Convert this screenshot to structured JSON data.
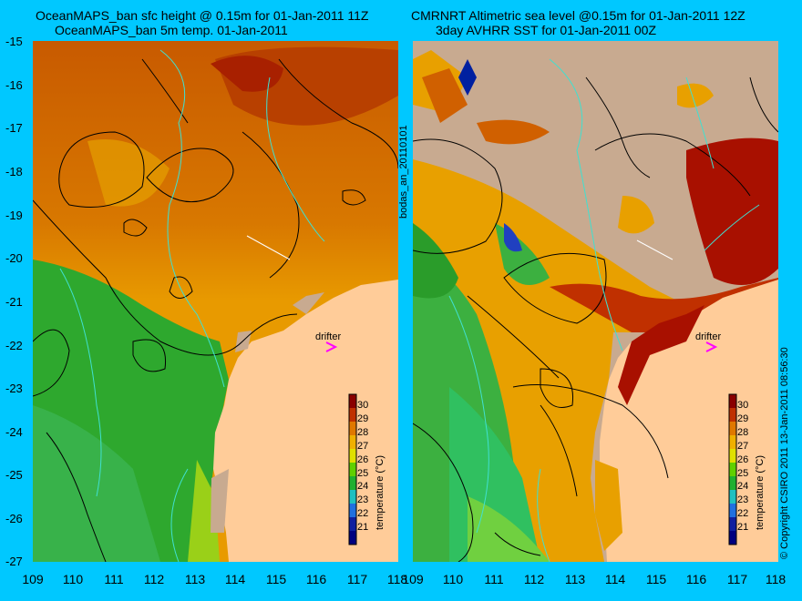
{
  "left_panel": {
    "title_line1": "OceanMAPS_ban sfc height @ 0.15m for 01-Jan-2011 11Z",
    "title_line2": "OceanMAPS_ban 5m temp. 01-Jan-2011",
    "drifter_label": "drifter",
    "colorbar": {
      "label": "temperature (°C)",
      "ticks": [
        "30",
        "29",
        "28",
        "27",
        "26",
        "25",
        "24",
        "23",
        "22",
        "21"
      ]
    }
  },
  "right_panel": {
    "title_line1": "CMRNRT Altimetric sea level  @0.15m  for 01-Jan-2011 12Z",
    "title_line2": "3day AVHRR SST for 01-Jan-2011 00Z",
    "drifter_label": "drifter",
    "colorbar": {
      "label": "temperature (°C)",
      "ticks": [
        "30",
        "29",
        "28",
        "27",
        "26",
        "25",
        "24",
        "23",
        "22",
        "21"
      ]
    }
  },
  "side_label": "bodas_an_20110101",
  "copyright": "© Copyright CSIRO 2011   13-Jan-2011 08:56:30",
  "y_axis_ticks": [
    "-15",
    "-16",
    "-17",
    "-18",
    "-19",
    "-20",
    "-21",
    "-22",
    "-23",
    "-24",
    "-25",
    "-26",
    "-27"
  ],
  "x_axis_ticks_left": [
    "109",
    "110",
    "111",
    "112",
    "113",
    "114",
    "115",
    "116",
    "117",
    "118"
  ],
  "x_axis_ticks_right": [
    "109",
    "110",
    "111",
    "112",
    "113",
    "114",
    "115",
    "116",
    "117",
    "118"
  ],
  "colors": {
    "background": "#00c8ff",
    "land": "#ffcc99",
    "missing": "#c8aa90",
    "drifter": "#ff00ff",
    "coast_contour": "#40e0d0"
  }
}
